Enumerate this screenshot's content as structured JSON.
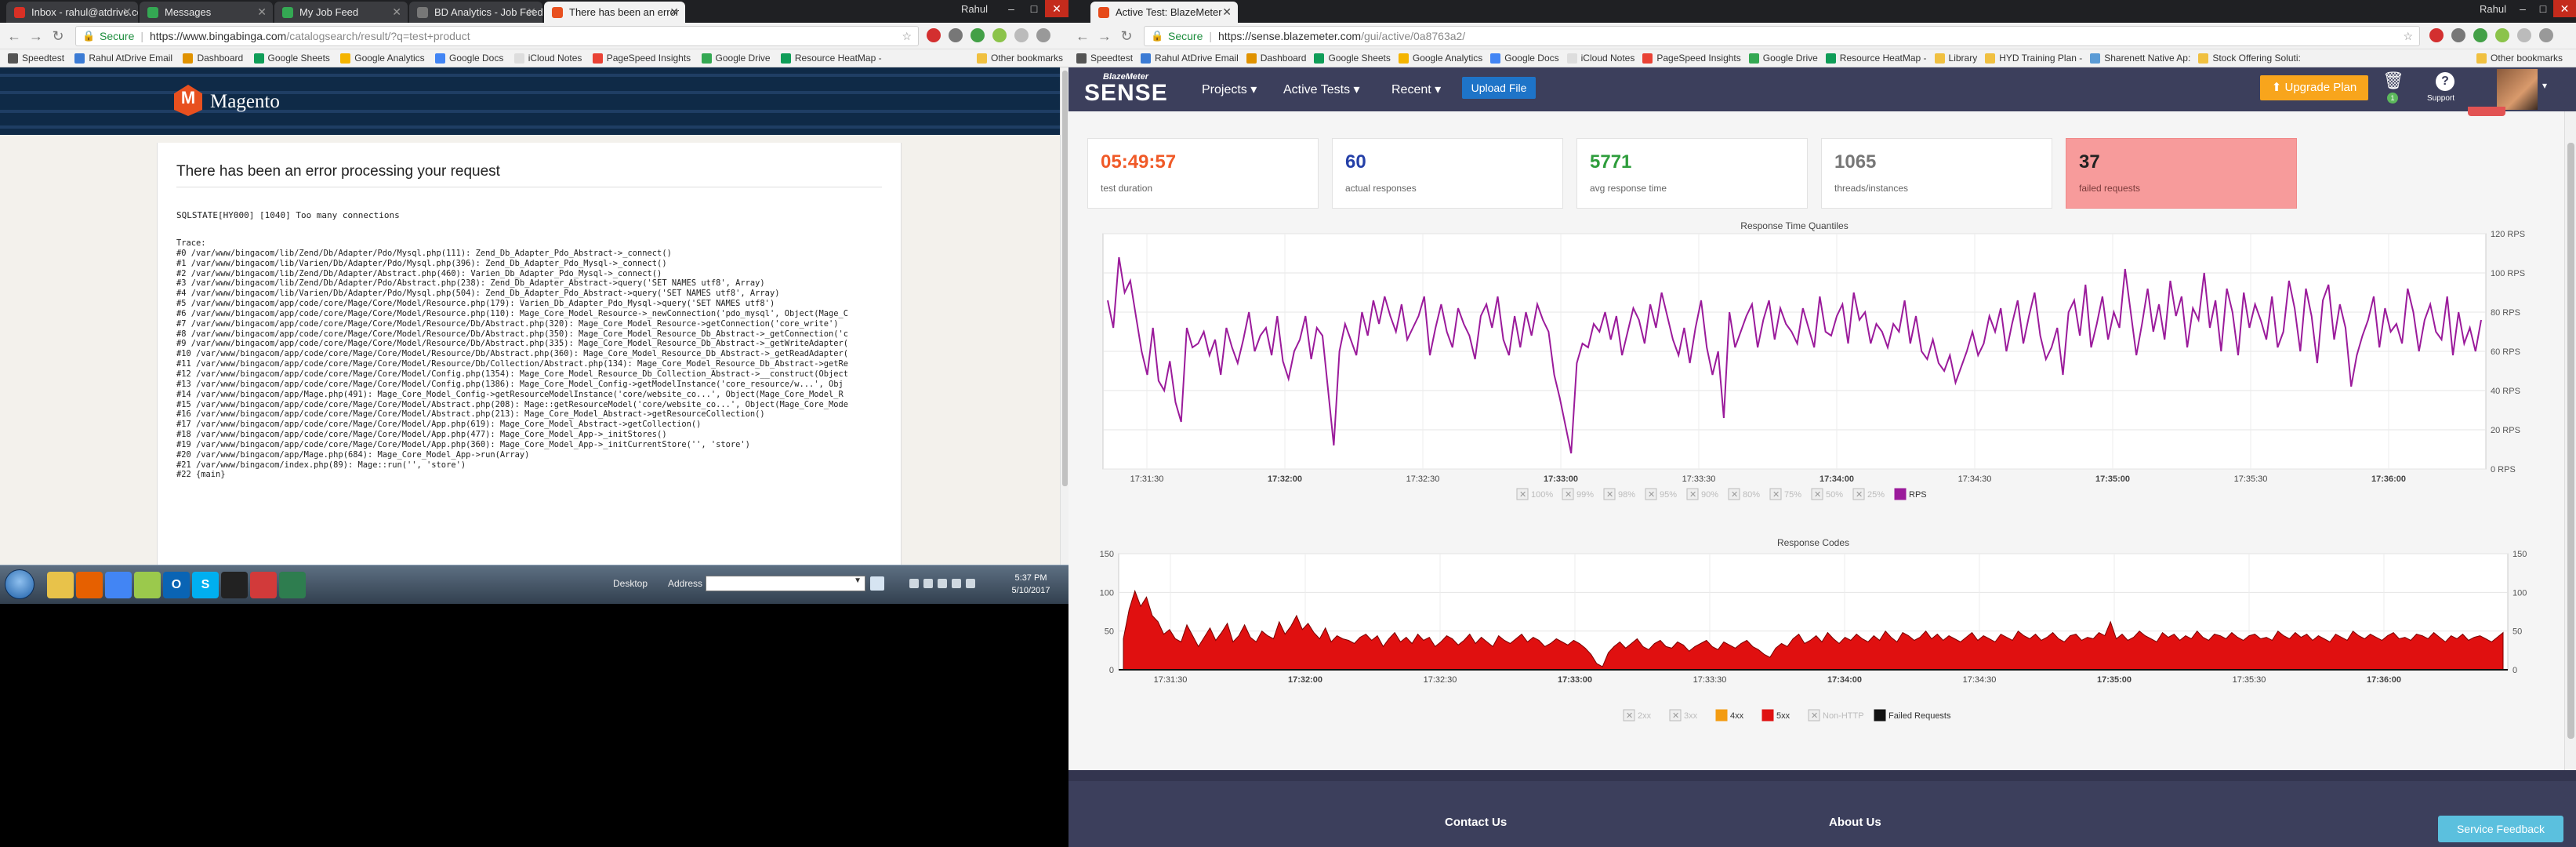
{
  "left_browser": {
    "tabs": [
      {
        "title": "Inbox - rahul@atdrive.co",
        "color": "#d93025"
      },
      {
        "title": "Messages",
        "color": "#34a853"
      },
      {
        "title": "My Job Feed",
        "color": "#34a853"
      },
      {
        "title": "BD Analytics - Job Feeds",
        "color": "#777777"
      },
      {
        "title": "There has been an error",
        "color": "#e8501f"
      }
    ],
    "user": "Rahul",
    "address": {
      "secure": "Secure",
      "url_host": "https://www.bingabinga.com",
      "url_path": "/catalogsearch/result/?q=test+product"
    },
    "bookmarks": [
      "Speedtest",
      "Rahul AtDrive Email",
      "Dashboard",
      "Google Sheets",
      "Google Analytics",
      "Google Docs",
      "iCloud Notes",
      "PageSpeed Insights",
      "Google Drive",
      "Resource HeatMap -"
    ],
    "other_bookmarks": "Other bookmarks",
    "magento": {
      "brand": "Magento",
      "error_title": "There has been an error processing your request",
      "error_message": "SQLSTATE[HY000] [1040] Too many connections",
      "trace": [
        "Trace:",
        "#0 /var/www/bingacom/lib/Zend/Db/Adapter/Pdo/Mysql.php(111): Zend_Db_Adapter_Pdo_Abstract->_connect()",
        "#1 /var/www/bingacom/lib/Varien/Db/Adapter/Pdo/Mysql.php(396): Zend_Db_Adapter_Pdo_Mysql->_connect()",
        "#2 /var/www/bingacom/lib/Zend/Db/Adapter/Abstract.php(460): Varien_Db_Adapter_Pdo_Mysql->_connect()",
        "#3 /var/www/bingacom/lib/Zend/Db/Adapter/Pdo/Abstract.php(238): Zend_Db_Adapter_Abstract->query('SET NAMES utf8', Array)",
        "#4 /var/www/bingacom/lib/Varien/Db/Adapter/Pdo/Mysql.php(504): Zend_Db_Adapter_Pdo_Abstract->query('SET NAMES utf8', Array)",
        "#5 /var/www/bingacom/app/code/core/Mage/Core/Model/Resource.php(179): Varien_Db_Adapter_Pdo_Mysql->query('SET NAMES utf8')",
        "#6 /var/www/bingacom/app/code/core/Mage/Core/Model/Resource.php(110): Mage_Core_Model_Resource->_newConnection('pdo_mysql', Object(Mage_C",
        "#7 /var/www/bingacom/app/code/core/Mage/Core/Model/Resource/Db/Abstract.php(320): Mage_Core_Model_Resource->getConnection('core_write')",
        "#8 /var/www/bingacom/app/code/core/Mage/Core/Model/Resource/Db/Abstract.php(350): Mage_Core_Model_Resource_Db_Abstract->_getConnection('c",
        "#9 /var/www/bingacom/app/code/core/Mage/Core/Model/Resource/Db/Abstract.php(335): Mage_Core_Model_Resource_Db_Abstract->_getWriteAdapter(",
        "#10 /var/www/bingacom/app/code/core/Mage/Core/Model/Resource/Db/Abstract.php(360): Mage_Core_Model_Resource_Db_Abstract->_getReadAdapter(",
        "#11 /var/www/bingacom/app/code/core/Mage/Core/Model/Resource/Db/Collection/Abstract.php(134): Mage_Core_Model_Resource_Db_Abstract->getRe",
        "#12 /var/www/bingacom/app/code/core/Mage/Core/Model/Config.php(1354): Mage_Core_Model_Resource_Db_Collection_Abstract->__construct(Object",
        "#13 /var/www/bingacom/app/code/core/Mage/Core/Model/Config.php(1386): Mage_Core_Model_Config->getModelInstance('core_resource/w...', Obj",
        "#14 /var/www/bingacom/app/Mage.php(491): Mage_Core_Model_Config->getResourceModelInstance('core/website_co...', Object(Mage_Core_Model_R",
        "#15 /var/www/bingacom/app/code/core/Mage/Core/Model/Abstract.php(208): Mage::getResourceModel('core/website_co...', Object(Mage_Core_Mode",
        "#16 /var/www/bingacom/app/code/core/Mage/Core/Model/Abstract.php(213): Mage_Core_Model_Abstract->getResourceCollection()",
        "#17 /var/www/bingacom/app/code/core/Mage/Core/Model/App.php(619): Mage_Core_Model_Abstract->getCollection()",
        "#18 /var/www/bingacom/app/code/core/Mage/Core/Model/App.php(477): Mage_Core_Model_App->_initStores()",
        "#19 /var/www/bingacom/app/code/core/Mage/Core/Model/App.php(360): Mage_Core_Model_App->_initCurrentStore('', 'store')",
        "#20 /var/www/bingacom/app/Mage.php(684): Mage_Core_Model_App->run(Array)",
        "#21 /var/www/bingacom/index.php(89): Mage::run('', 'store')",
        "#22 {main}"
      ]
    }
  },
  "taskbar": {
    "desktop_label": "Desktop",
    "address_label": "Address",
    "time": "5:37 PM",
    "date": "5/10/2017",
    "apps": [
      {
        "icon": "explorer-icon",
        "color": "#e8c24a",
        "glyph": ""
      },
      {
        "icon": "firefox-icon",
        "color": "#e66000",
        "glyph": ""
      },
      {
        "icon": "chrome-icon",
        "color": "#4285f4",
        "glyph": ""
      },
      {
        "icon": "notepad-icon",
        "color": "#9bc94c",
        "glyph": ""
      },
      {
        "icon": "outlook-icon",
        "color": "#0a64b4",
        "glyph": "O"
      },
      {
        "icon": "skype-icon",
        "color": "#00aff0",
        "glyph": "S"
      },
      {
        "icon": "cmd-icon",
        "color": "#222222",
        "glyph": ""
      },
      {
        "icon": "pen-icon",
        "color": "#d23a3a",
        "glyph": ""
      },
      {
        "icon": "monitor-icon",
        "color": "#2e7d4f",
        "glyph": ""
      }
    ]
  },
  "right_browser": {
    "tab_title": "Active Test: BlazeMeter",
    "user": "Rahul",
    "address": {
      "secure": "Secure",
      "url_host": "https://sense.blazemeter.com",
      "url_path": "/gui/active/0a8763a2/"
    },
    "bookmarks": [
      "Speedtest",
      "Rahul AtDrive Email",
      "Dashboard",
      "Google Sheets",
      "Google Analytics",
      "Google Docs",
      "iCloud Notes",
      "PageSpeed Insights",
      "Google Drive",
      "Resource HeatMap -",
      "Library",
      "HYD Training Plan -",
      "Sharenett Native Ap:",
      "Stock Offering Soluti:"
    ],
    "other_bookmarks": "Other bookmarks",
    "app": {
      "logo_small": "BlazeMeter",
      "logo": "SENSE",
      "menu": [
        "Projects ▾",
        "Active Tests ▾",
        "Recent ▾"
      ],
      "upload": "Upload File",
      "upgrade": "Upgrade Plan",
      "trash_count": "1",
      "support": "Support",
      "help_glyph": "?"
    },
    "stats": [
      {
        "value": "05:49:57",
        "label": "test duration",
        "color": "#f05a28"
      },
      {
        "value": "60",
        "label": "actual responses",
        "color": "#2540a8"
      },
      {
        "value": "5771",
        "label": "avg response time",
        "color": "#2e9d3c"
      },
      {
        "value": "1065",
        "label": "threads/instances",
        "color": "#777777"
      },
      {
        "value": "37",
        "label": "failed requests",
        "color": "#222222"
      }
    ],
    "footer": {
      "contact": "Contact Us",
      "about": "About Us",
      "feedback": "Service Feedback"
    }
  },
  "chart_data": [
    {
      "type": "line",
      "title": "Response Time Quantiles",
      "ylabel": "",
      "y_unit": "RPS",
      "ylim": [
        0,
        120
      ],
      "y_ticks": [
        "0 RPS",
        "20 RPS",
        "40 RPS",
        "60 RPS",
        "80 RPS",
        "100 RPS",
        "120 RPS"
      ],
      "x_ticks": [
        "17:31:30",
        "17:32:00",
        "17:32:30",
        "17:33:00",
        "17:33:30",
        "17:34:00",
        "17:34:30",
        "17:35:00",
        "17:35:30",
        "17:36:00"
      ],
      "bold_ticks": [
        "17:32:00",
        "17:33:00",
        "17:34:00",
        "17:35:00",
        "17:36:00"
      ],
      "grid": true,
      "legend_placement": "bottom",
      "legend": [
        {
          "label": "100%",
          "on": false,
          "color": "#cccccc"
        },
        {
          "label": "99%",
          "on": false,
          "color": "#cccccc"
        },
        {
          "label": "98%",
          "on": false,
          "color": "#cccccc"
        },
        {
          "label": "95%",
          "on": false,
          "color": "#cccccc"
        },
        {
          "label": "90%",
          "on": false,
          "color": "#cccccc"
        },
        {
          "label": "80%",
          "on": false,
          "color": "#cccccc"
        },
        {
          "label": "75%",
          "on": false,
          "color": "#cccccc"
        },
        {
          "label": "50%",
          "on": false,
          "color": "#cccccc"
        },
        {
          "label": "25%",
          "on": false,
          "color": "#cccccc"
        },
        {
          "label": "RPS",
          "on": true,
          "color": "#9b1b9b"
        }
      ],
      "series": [
        {
          "name": "RPS",
          "color": "#9b1b9b",
          "values": [
            86,
            72,
            108,
            90,
            96,
            78,
            60,
            48,
            72,
            45,
            40,
            55,
            34,
            24,
            72,
            62,
            64,
            70,
            58,
            66,
            48,
            72,
            62,
            54,
            66,
            80,
            60,
            68,
            72,
            58,
            78,
            55,
            46,
            60,
            66,
            78,
            56,
            72,
            68,
            40,
            12,
            60,
            74,
            66,
            58,
            80,
            68,
            86,
            74,
            88,
            78,
            70,
            84,
            66,
            72,
            78,
            88,
            58,
            72,
            84,
            70,
            62,
            82,
            74,
            68,
            56,
            78,
            84,
            72,
            88,
            66,
            58,
            78,
            62,
            80,
            68,
            84,
            76,
            70,
            48,
            36,
            22,
            8,
            54,
            64,
            62,
            74,
            70,
            80,
            66,
            78,
            58,
            70,
            82,
            76,
            64,
            84,
            72,
            90,
            78,
            66,
            58,
            72,
            54,
            72,
            86,
            62,
            48,
            60,
            26,
            80,
            62,
            70,
            78,
            84,
            62,
            76,
            86,
            66,
            82,
            74,
            70,
            64,
            82,
            72,
            62,
            88,
            70,
            68,
            78,
            84,
            64,
            90,
            76,
            80,
            64,
            74,
            70,
            62,
            74,
            70,
            86,
            64,
            78,
            60,
            56,
            66,
            54,
            50,
            58,
            44,
            52,
            60,
            70,
            58,
            64,
            78,
            70,
            82,
            60,
            74,
            86,
            64,
            78,
            90,
            68,
            56,
            62,
            72,
            48,
            80,
            86,
            68,
            94,
            62,
            74,
            88,
            66,
            80,
            72,
            102,
            80,
            58,
            74,
            92,
            70,
            84,
            66,
            96,
            78,
            88,
            62,
            82,
            76,
            100,
            72,
            86,
            60,
            92,
            80,
            58,
            90,
            72,
            84,
            76,
            66,
            88,
            62,
            70,
            96,
            82,
            60,
            92,
            78,
            54,
            86,
            94,
            66,
            84,
            72,
            42,
            58,
            68,
            76,
            88,
            62,
            82,
            70,
            74,
            64,
            92,
            80,
            60,
            76,
            84,
            70,
            66,
            88,
            58,
            80,
            64,
            72,
            60,
            76
          ]
        }
      ]
    },
    {
      "type": "area",
      "title": "Response Codes",
      "ylim": [
        0,
        150
      ],
      "y_ticks": [
        "0",
        "50",
        "100",
        "150"
      ],
      "x_ticks": [
        "17:31:30",
        "17:32:00",
        "17:32:30",
        "17:33:00",
        "17:33:30",
        "17:34:00",
        "17:34:30",
        "17:35:00",
        "17:35:30",
        "17:36:00"
      ],
      "bold_ticks": [
        "17:32:00",
        "17:33:00",
        "17:34:00",
        "17:35:00",
        "17:36:00"
      ],
      "grid": true,
      "legend_placement": "bottom",
      "legend": [
        {
          "label": "2xx",
          "on": false,
          "color": "#cccccc"
        },
        {
          "label": "3xx",
          "on": false,
          "color": "#cccccc"
        },
        {
          "label": "4xx",
          "on": true,
          "color": "#f39c12"
        },
        {
          "label": "5xx",
          "on": true,
          "color": "#e01010"
        },
        {
          "label": "Non-HTTP",
          "on": false,
          "color": "#cccccc"
        },
        {
          "label": "Failed Requests",
          "on": true,
          "color": "#111111"
        }
      ],
      "series": [
        {
          "name": "5xx",
          "color": "#e01010",
          "values": [
            40,
            78,
            102,
            82,
            94,
            70,
            62,
            46,
            52,
            40,
            36,
            58,
            44,
            30,
            42,
            54,
            38,
            48,
            60,
            36,
            44,
            58,
            42,
            36,
            50,
            44,
            40,
            62,
            46,
            56,
            70,
            52,
            60,
            48,
            40,
            54,
            36,
            44,
            40,
            38,
            34,
            42,
            46,
            38,
            44,
            30,
            40,
            48,
            36,
            42,
            34,
            46,
            38,
            42,
            30,
            36,
            44,
            40,
            32,
            38,
            46,
            34,
            42,
            36,
            30,
            44,
            38,
            34,
            40,
            46,
            36,
            42,
            38,
            30,
            34,
            40,
            36,
            32,
            38,
            34,
            28,
            20,
            8,
            4,
            22,
            30,
            36,
            28,
            34,
            40,
            30,
            26,
            34,
            38,
            30,
            28,
            36,
            32,
            24,
            30,
            34,
            38,
            30,
            26,
            36,
            32,
            28,
            34,
            38,
            30,
            26,
            20,
            16,
            28,
            34,
            30,
            40,
            46,
            34,
            38,
            44,
            36,
            48,
            40,
            34,
            42,
            38,
            46,
            40,
            36,
            44,
            38,
            50,
            42,
            36,
            48,
            44,
            38,
            42,
            50,
            40,
            46,
            38,
            44,
            40,
            36,
            42,
            48,
            38,
            44,
            40,
            36,
            46,
            42,
            38,
            50,
            44,
            40,
            46,
            38,
            42,
            48,
            40,
            36,
            44,
            46,
            38,
            42,
            40,
            48,
            44,
            62,
            40,
            46,
            38,
            42,
            50,
            44,
            40,
            36,
            48,
            42,
            46,
            38,
            44,
            40,
            50,
            42,
            38,
            46,
            44,
            40,
            48,
            42,
            38,
            44,
            46,
            40,
            42,
            38,
            50,
            44,
            40,
            48,
            42,
            46,
            38,
            44,
            40,
            36,
            46,
            42,
            38,
            50,
            44,
            40,
            46,
            42,
            38,
            44,
            48,
            40,
            42,
            38,
            46,
            44,
            40,
            48,
            42,
            36,
            44,
            40,
            46,
            38,
            42,
            44,
            40,
            36,
            42,
            48
          ]
        }
      ]
    }
  ]
}
